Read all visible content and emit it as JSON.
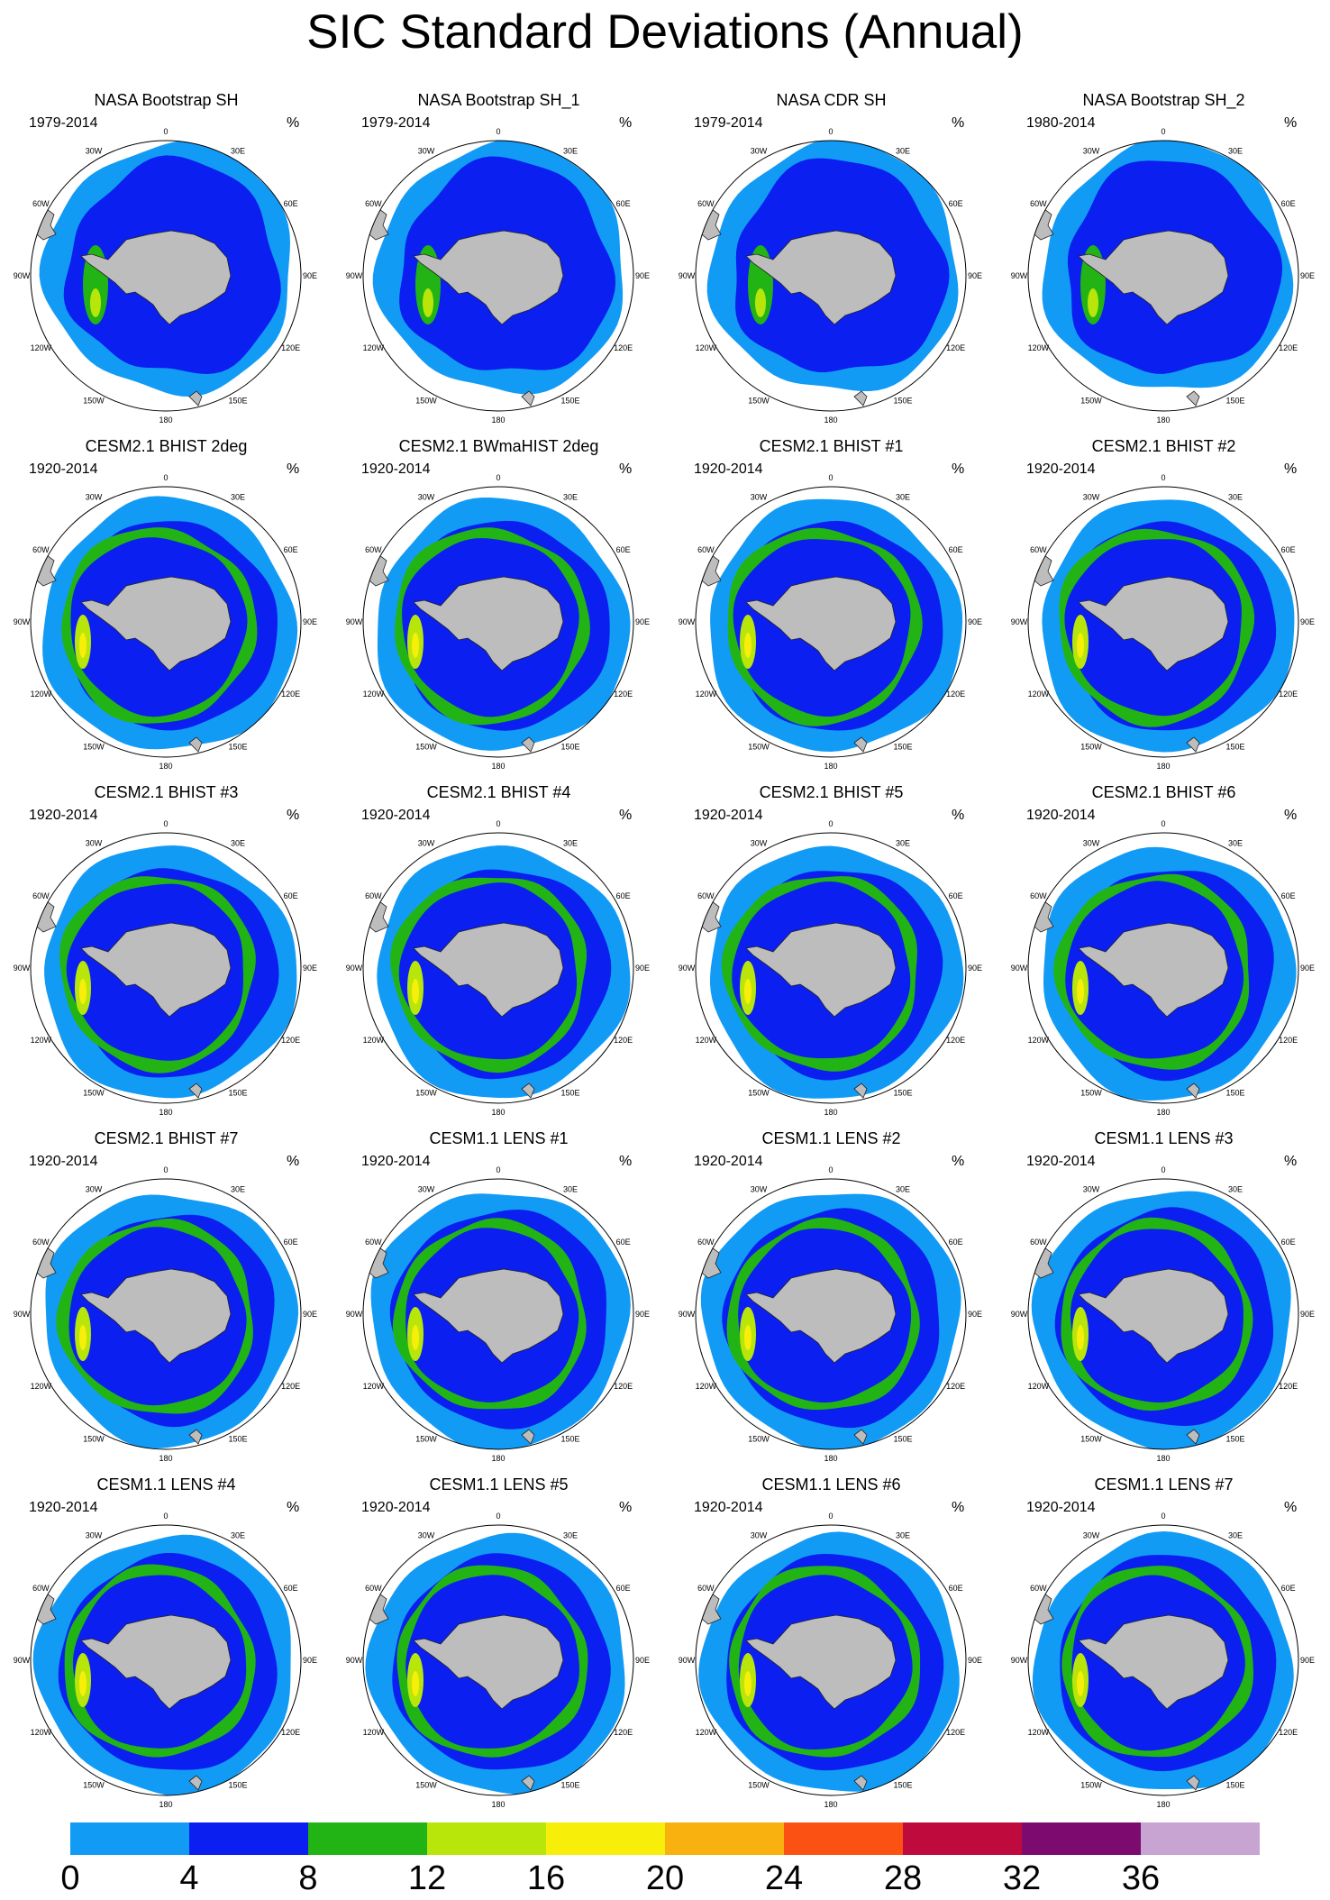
{
  "title": "SIC Standard Deviations (Annual)",
  "unit": "%",
  "longitude_labels": [
    "0",
    "30E",
    "60E",
    "90E",
    "120E",
    "150E",
    "180",
    "150W",
    "120W",
    "90W",
    "60W",
    "30W"
  ],
  "panels": [
    {
      "title": "NASA Bootstrap SH",
      "years": "1979-2014",
      "kind": "obs"
    },
    {
      "title": "NASA Bootstrap SH_1",
      "years": "1979-2014",
      "kind": "obs"
    },
    {
      "title": "NASA CDR SH",
      "years": "1979-2014",
      "kind": "obs"
    },
    {
      "title": "NASA Bootstrap SH_2",
      "years": "1980-2014",
      "kind": "obs"
    },
    {
      "title": "CESM2.1 BHIST 2deg",
      "years": "1920-2014",
      "kind": "cesm2"
    },
    {
      "title": "CESM2.1 BWmaHIST 2deg",
      "years": "1920-2014",
      "kind": "cesm2"
    },
    {
      "title": "CESM2.1 BHIST #1",
      "years": "1920-2014",
      "kind": "cesm2"
    },
    {
      "title": "CESM2.1 BHIST #2",
      "years": "1920-2014",
      "kind": "cesm2"
    },
    {
      "title": "CESM2.1 BHIST #3",
      "years": "1920-2014",
      "kind": "cesm2"
    },
    {
      "title": "CESM2.1 BHIST #4",
      "years": "1920-2014",
      "kind": "cesm2"
    },
    {
      "title": "CESM2.1 BHIST #5",
      "years": "1920-2014",
      "kind": "cesm2"
    },
    {
      "title": "CESM2.1 BHIST #6",
      "years": "1920-2014",
      "kind": "cesm2"
    },
    {
      "title": "CESM2.1 BHIST #7",
      "years": "1920-2014",
      "kind": "cesm2"
    },
    {
      "title": "CESM1.1 LENS #1",
      "years": "1920-2014",
      "kind": "lens"
    },
    {
      "title": "CESM1.1 LENS #2",
      "years": "1920-2014",
      "kind": "lens"
    },
    {
      "title": "CESM1.1 LENS #3",
      "years": "1920-2014",
      "kind": "lens"
    },
    {
      "title": "CESM1.1 LENS #4",
      "years": "1920-2014",
      "kind": "lens"
    },
    {
      "title": "CESM1.1 LENS #5",
      "years": "1920-2014",
      "kind": "lens"
    },
    {
      "title": "CESM1.1 LENS #6",
      "years": "1920-2014",
      "kind": "lens"
    },
    {
      "title": "CESM1.1 LENS #7",
      "years": "1920-2014",
      "kind": "lens"
    }
  ],
  "colorbar": {
    "labels": [
      "0",
      "4",
      "8",
      "12",
      "16",
      "20",
      "24",
      "28",
      "32",
      "36"
    ],
    "colors": [
      "#129bf5",
      "#0a1ff0",
      "#22b414",
      "#b9e60a",
      "#f7ef0a",
      "#f9b10f",
      "#fb5214",
      "#be0a3c",
      "#7d0a6e",
      "#c7a4d2"
    ]
  },
  "style_colors": {
    "land": "#bdbdbd",
    "background": "#ffffff"
  }
}
